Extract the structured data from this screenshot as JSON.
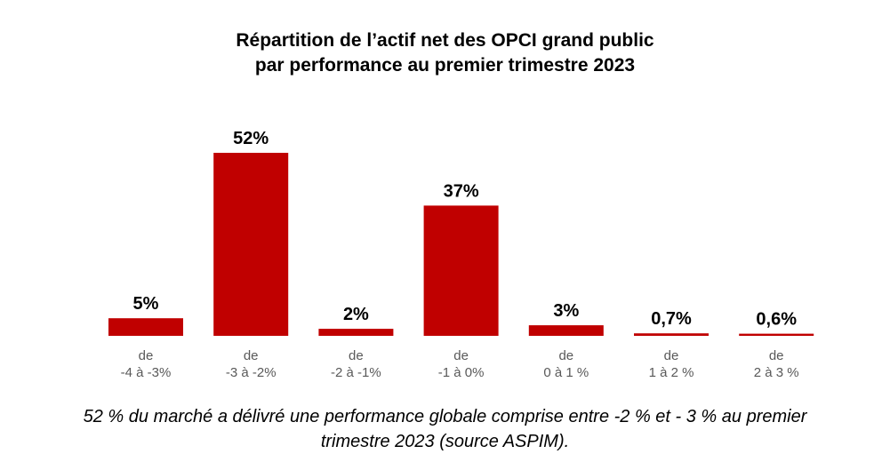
{
  "chart_data": {
    "type": "bar",
    "title_lines": [
      "Répartition de l’actif net des OPCI grand public",
      "par performance au premier trimestre 2023"
    ],
    "categories": [
      [
        "de",
        "-4 à -3%"
      ],
      [
        "de",
        "-3 à -2%"
      ],
      [
        "de",
        "-2 à -1%"
      ],
      [
        "de",
        "-1 à 0%"
      ],
      [
        "de",
        "0 à 1 %"
      ],
      [
        "de",
        "1 à 2 %"
      ],
      [
        "de",
        "2 à 3 %"
      ]
    ],
    "values": [
      5,
      52,
      2,
      37,
      3,
      0.7,
      0.6
    ],
    "value_labels": [
      "5%",
      "52%",
      "2%",
      "37%",
      "3%",
      "0,7%",
      "0,6%"
    ],
    "ylim": [
      0,
      52
    ],
    "bar_color": "#c00000"
  },
  "caption_lines": [
    "52 % du marché a délivré une performance globale comprise entre -2 % et - 3 % au premier",
    "trimestre 2023 (source ASPIM)."
  ]
}
